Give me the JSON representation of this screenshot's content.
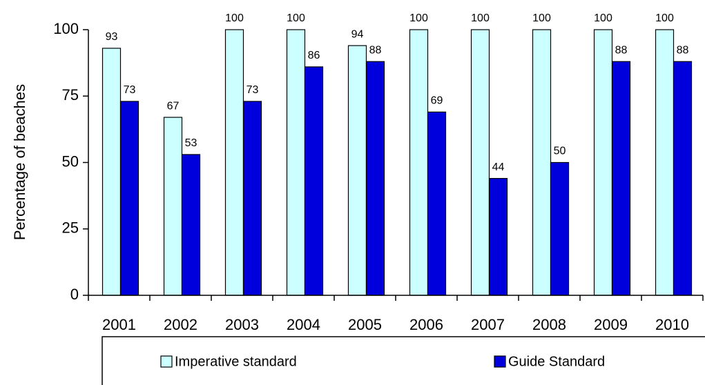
{
  "chart_data": {
    "type": "bar",
    "y_label": "Percentage of beaches",
    "categories": [
      "2001",
      "2002",
      "2003",
      "2004",
      "2005",
      "2006",
      "2007",
      "2008",
      "2009",
      "2010"
    ],
    "series": [
      {
        "name": "Imperative standard",
        "color": "#ccffff",
        "values": [
          93,
          67,
          100,
          100,
          94,
          100,
          100,
          100,
          100,
          100
        ]
      },
      {
        "name": "Guide Standard",
        "color": "#0000dd",
        "values": [
          73,
          53,
          73,
          86,
          88,
          69,
          44,
          50,
          88,
          88
        ]
      }
    ],
    "ylim": [
      0,
      100
    ],
    "yticks": [
      0,
      25,
      50,
      75,
      100
    ],
    "legend": "bottom",
    "grid": false
  }
}
